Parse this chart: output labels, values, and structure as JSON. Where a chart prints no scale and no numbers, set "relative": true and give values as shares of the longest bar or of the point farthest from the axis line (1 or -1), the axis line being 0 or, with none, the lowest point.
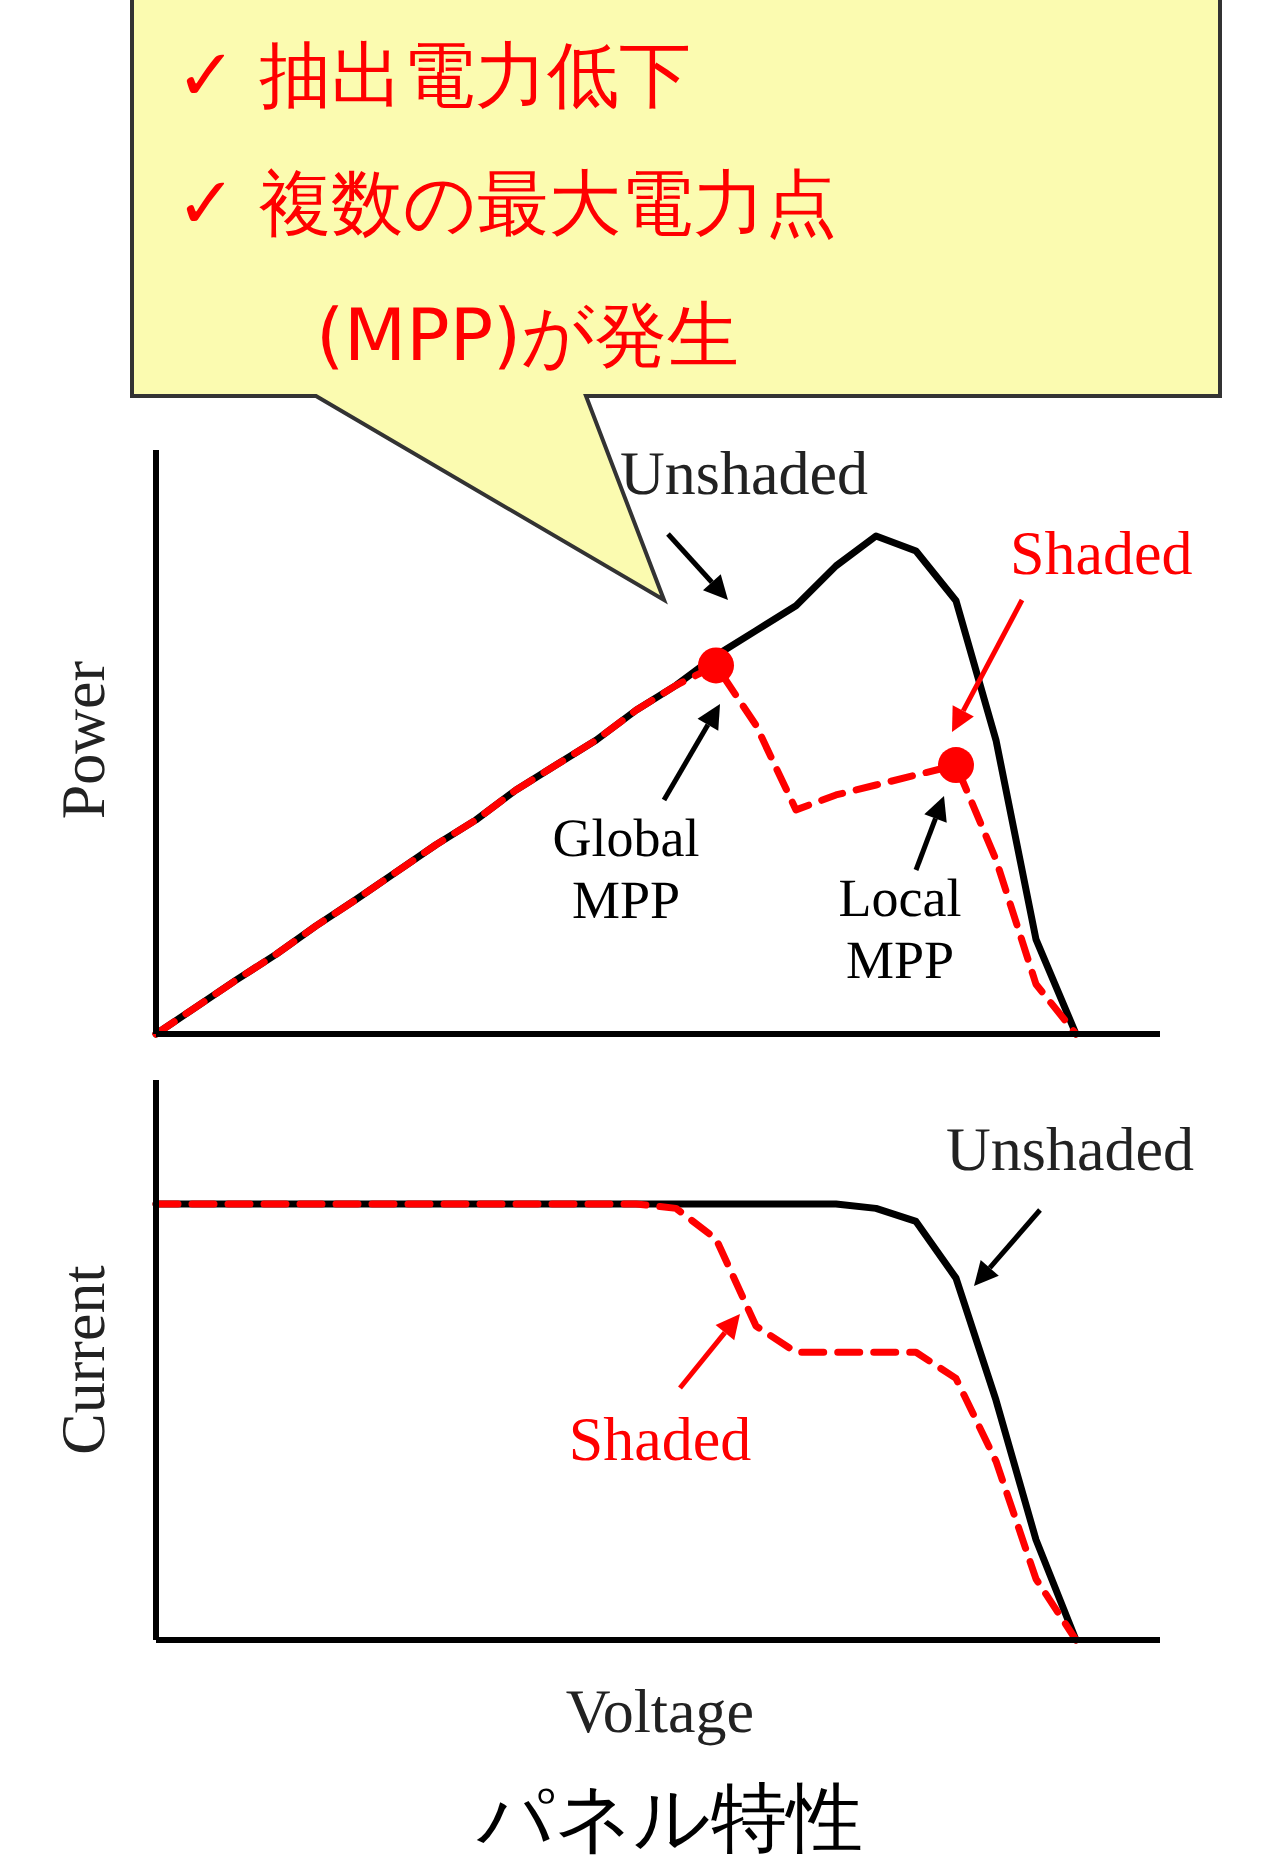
{
  "chart_data": [
    {
      "type": "line",
      "relative": true,
      "ylabel": "Power",
      "annotations": [
        "✓  抽出電力低下",
        "✓  複数の最大電力点",
        "(MPP)が発生",
        "Global MPP",
        "Local MPP"
      ],
      "categories": [
        null,
        null,
        null,
        null,
        null,
        null,
        null,
        null,
        null,
        null,
        null,
        null,
        null,
        null,
        null,
        null,
        null,
        null,
        null,
        null,
        null,
        null,
        null,
        null
      ],
      "series": [
        {
          "name": "Unshaded",
          "color": "#000000",
          "line_style": "solid",
          "values": [
            0,
            0.054,
            0.108,
            0.16,
            0.217,
            0.27,
            0.325,
            0.38,
            0.43,
            0.49,
            0.54,
            0.59,
            0.65,
            0.7,
            0.76,
            0.81,
            0.86,
            0.94,
            1,
            0.97,
            0.87,
            0.59,
            0.19,
            0
          ]
        },
        {
          "name": "Shaded",
          "color": "#ff0000",
          "line_style": "dashed",
          "values": [
            0,
            0.054,
            0.108,
            0.16,
            0.217,
            0.27,
            0.325,
            0.38,
            0.43,
            0.49,
            0.54,
            0.59,
            0.65,
            0.7,
            0.74,
            0.62,
            0.45,
            0.48,
            0.5,
            0.52,
            0.54,
            0.35,
            0.1,
            0
          ]
        },
        {
          "type": "line",
          "line_style": "none",
          "color": "#ff0000",
          "marker": "circle",
          "values": [
            null,
            null,
            null,
            null,
            null,
            null,
            null,
            null,
            null,
            null,
            null,
            null,
            null,
            null,
            0.74,
            null,
            null,
            null,
            null,
            null,
            0.54,
            null,
            null,
            null
          ]
        }
      ]
    },
    {
      "type": "line",
      "relative": true,
      "ylabel": "Current",
      "xlabel": "Voltage",
      "annotations": [
        "パネル特性"
      ],
      "categories": [
        null,
        null,
        null,
        null,
        null,
        null,
        null,
        null,
        null,
        null,
        null,
        null,
        null,
        null,
        null,
        null,
        null,
        null,
        null,
        null,
        null,
        null,
        null,
        null
      ],
      "series": [
        {
          "name": "Unshaded",
          "color": "#000000",
          "line_style": "solid",
          "values": [
            1,
            1,
            1,
            1,
            1,
            1,
            1,
            1,
            1,
            1,
            1,
            1,
            1,
            1,
            1,
            1,
            1,
            1,
            0.99,
            0.96,
            0.83,
            0.55,
            0.23,
            0
          ]
        },
        {
          "name": "Shaded",
          "color": "#ff0000",
          "line_style": "dashed",
          "values": [
            1,
            1,
            1,
            1,
            1,
            1,
            1,
            1,
            1,
            1,
            1,
            1,
            1,
            0.99,
            0.92,
            0.72,
            0.66,
            0.66,
            0.66,
            0.66,
            0.6,
            0.41,
            0.14,
            0
          ]
        }
      ]
    }
  ]
}
